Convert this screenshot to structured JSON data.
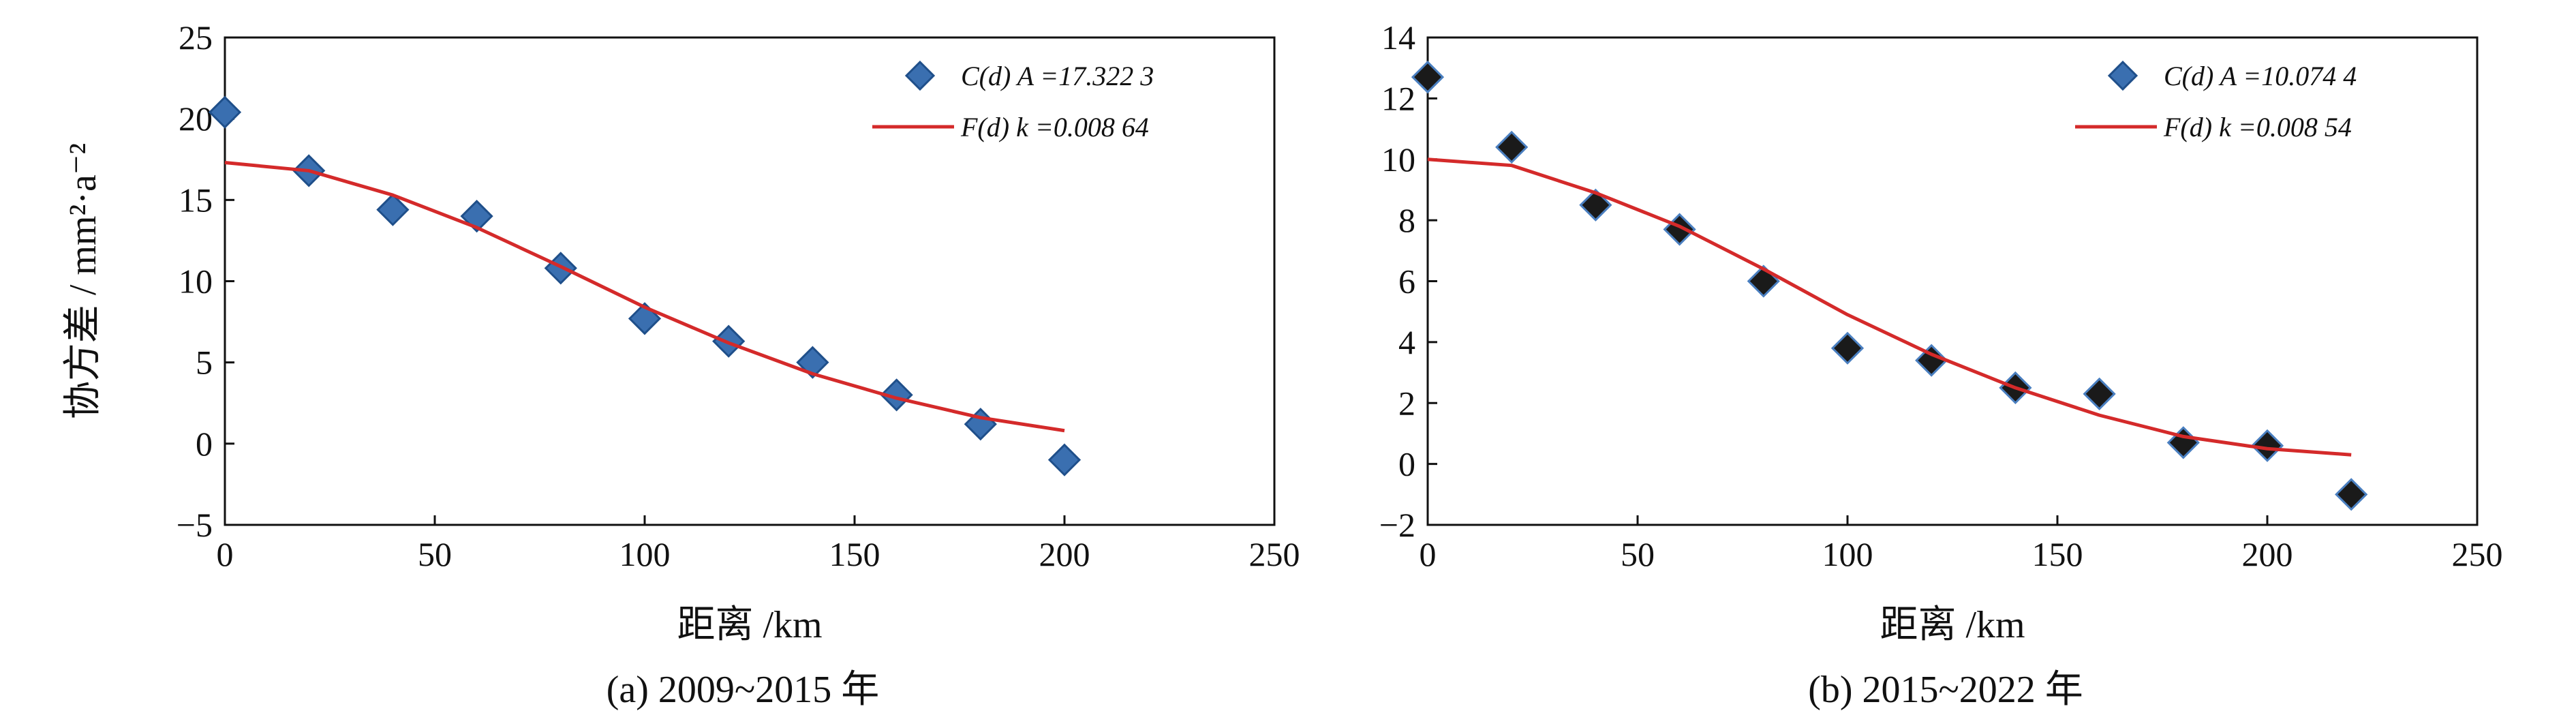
{
  "chart_data": [
    {
      "type": "scatter",
      "caption": "(a) 2009~2015 年",
      "xlabel": "距离 /km",
      "ylabel": "协方差 / mm²·a⁻²",
      "xlim": [
        0,
        250
      ],
      "ylim": [
        -5,
        25
      ],
      "xticks": [
        0,
        50,
        100,
        150,
        200,
        250
      ],
      "yticks": [
        -5,
        0,
        5,
        10,
        15,
        20,
        25
      ],
      "marker_color": "#3a6fb0",
      "marker_edge": "#1f4f8a",
      "line_color": "#d42a2a",
      "legend_position": "top-right",
      "series": [
        {
          "name": "C(d) A =17.322 3",
          "kind": "points",
          "x": [
            0,
            20,
            40,
            60,
            80,
            100,
            120,
            140,
            160,
            180,
            200
          ],
          "y": [
            20.4,
            16.8,
            14.4,
            14.0,
            10.8,
            7.7,
            6.3,
            5.0,
            3.0,
            1.2,
            -1.0
          ]
        },
        {
          "name": "F(d) k =0.008 64",
          "kind": "line",
          "x": [
            0,
            20,
            40,
            60,
            80,
            100,
            120,
            140,
            160,
            180,
            200
          ],
          "y": [
            17.3,
            16.8,
            15.3,
            13.3,
            10.9,
            8.4,
            6.2,
            4.3,
            2.8,
            1.6,
            0.8
          ]
        }
      ]
    },
    {
      "type": "scatter",
      "caption": "(b) 2015~2022 年",
      "xlabel": "距离 /km",
      "ylabel": "",
      "xlim": [
        0,
        250
      ],
      "ylim": [
        -2,
        14
      ],
      "xticks": [
        0,
        50,
        100,
        150,
        200,
        250
      ],
      "yticks": [
        -2,
        0,
        2,
        4,
        6,
        8,
        10,
        12,
        14
      ],
      "marker_color": "#1a1a1a",
      "marker_edge": "#4a7fc0",
      "legend_marker_color": "#3a6fb0",
      "line_color": "#d42a2a",
      "legend_position": "top-right",
      "series": [
        {
          "name": "C(d) A =10.074 4",
          "kind": "points",
          "x": [
            0,
            20,
            40,
            60,
            80,
            100,
            120,
            140,
            160,
            180,
            200,
            220
          ],
          "y": [
            12.7,
            10.4,
            8.5,
            7.7,
            6.0,
            3.8,
            3.4,
            2.5,
            2.3,
            0.7,
            0.6,
            -1.0
          ]
        },
        {
          "name": "F(d) k =0.008 54",
          "kind": "line",
          "x": [
            0,
            20,
            40,
            60,
            80,
            100,
            120,
            140,
            160,
            180,
            200,
            220
          ],
          "y": [
            10.0,
            9.8,
            8.9,
            7.8,
            6.4,
            4.9,
            3.6,
            2.5,
            1.6,
            0.9,
            0.5,
            0.3
          ]
        }
      ]
    }
  ]
}
